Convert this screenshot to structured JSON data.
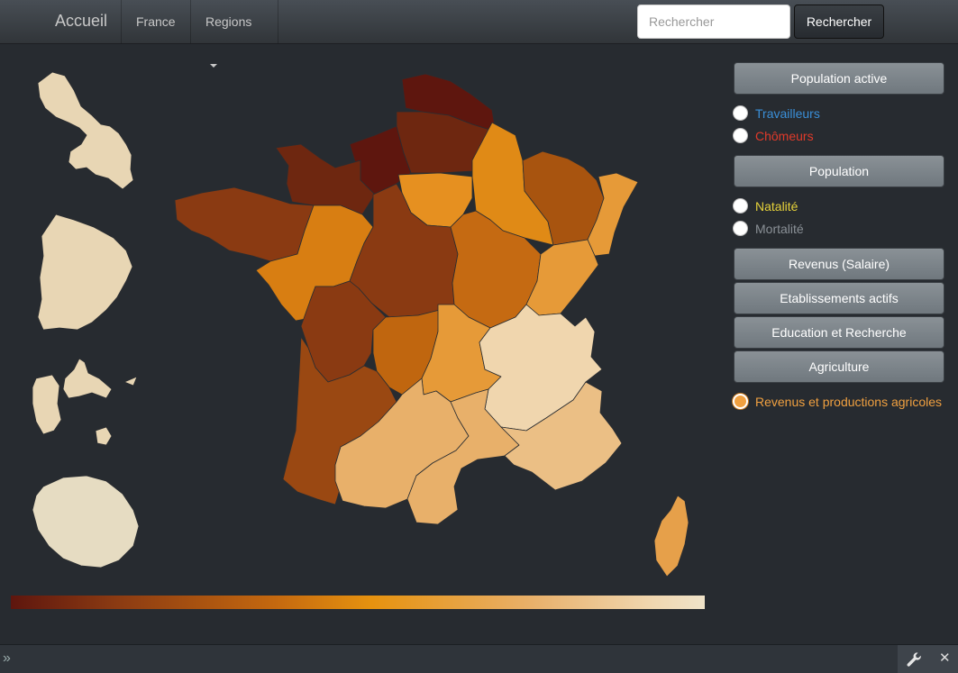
{
  "navbar": {
    "brand": "Accueil",
    "items": [
      {
        "label": "France"
      },
      {
        "label": "Regions"
      }
    ],
    "search": {
      "placeholder": "Rechercher",
      "button_label": "Rechercher"
    }
  },
  "sidebar": {
    "sections": [
      {
        "button": "Population active",
        "options": [
          {
            "label": "Travailleurs",
            "color": "#3a8fd8",
            "checked": false
          },
          {
            "label": "Chômeurs",
            "color": "#e03a2a",
            "checked": false
          }
        ]
      },
      {
        "button": "Population",
        "options": [
          {
            "label": "Natalité",
            "color": "#e6d23a",
            "checked": false
          },
          {
            "label": "Mortalité",
            "color": "#8a9096",
            "checked": false
          }
        ]
      }
    ],
    "buttons": [
      "Revenus (Salaire)",
      "Etablissements actifs",
      "Education et Recherche",
      "Agriculture"
    ],
    "active_option": {
      "label": "Revenus et productions agricoles",
      "color": "#f0a040",
      "checked": true
    }
  },
  "map": {
    "selected_indicator": "Revenus et productions agricoles",
    "legend_gradient": [
      "#5e160e",
      "#8a3a12",
      "#c4680f",
      "#e6920f",
      "#e8b06a",
      "#f0d6ae",
      "#efe3c9"
    ]
  },
  "colors": {
    "background": "#272b30",
    "accent": "#f0a040"
  }
}
